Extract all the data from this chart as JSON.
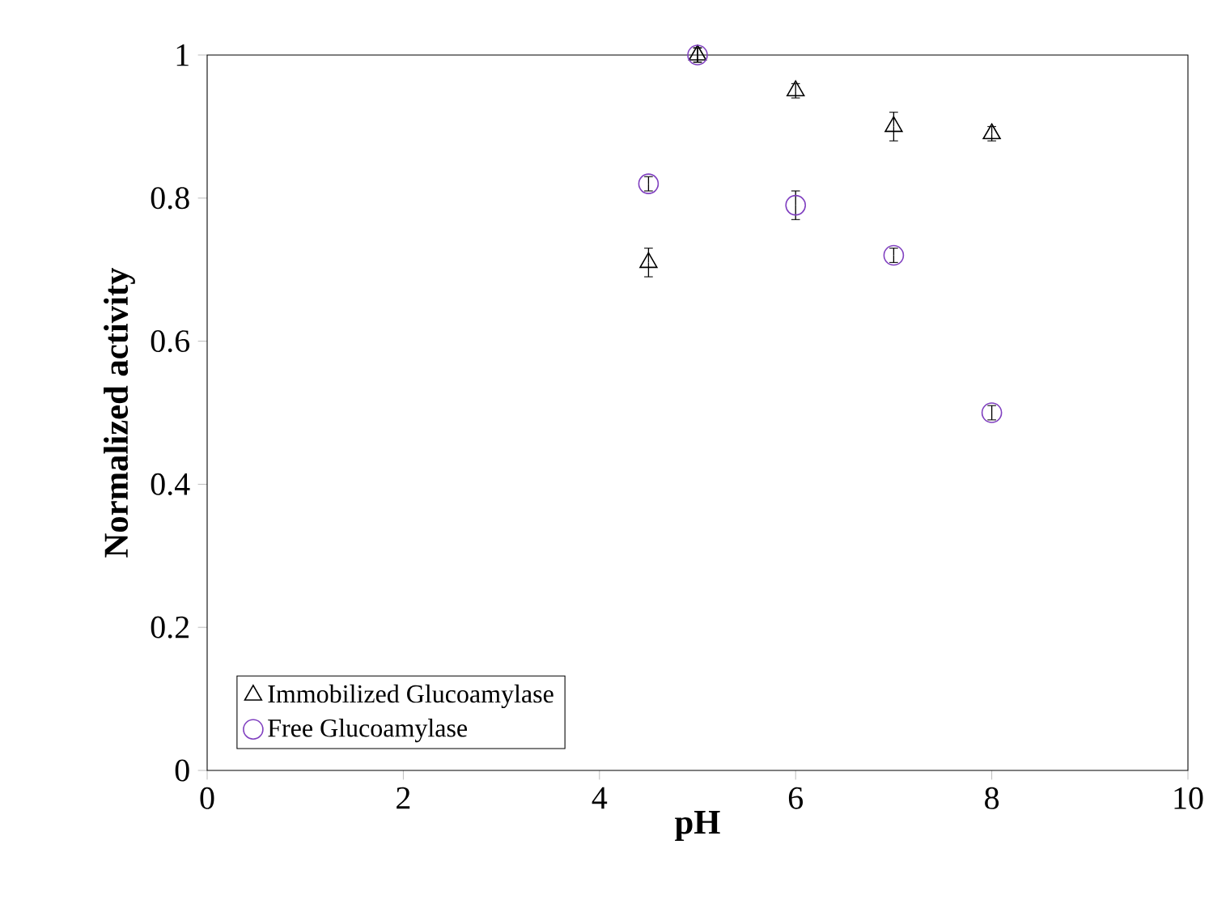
{
  "chart_data": {
    "type": "scatter",
    "xlabel": "pH",
    "ylabel": "Normalized activity",
    "xlim": [
      0,
      10
    ],
    "xticks": [
      0,
      2,
      4,
      6,
      8,
      10
    ],
    "ylim": [
      0,
      1
    ],
    "yticks": [
      0,
      0.2,
      0.4,
      0.6,
      0.8,
      1
    ],
    "legend": "bottom left",
    "grid": false,
    "series": [
      {
        "name": "Immobilized Glucoamylase",
        "color": "#000000",
        "marker": "triangle",
        "x": [
          4.5,
          5,
          6,
          7,
          8
        ],
        "values": [
          0.71,
          1.0,
          0.95,
          0.9,
          0.89
        ],
        "errors": [
          0.02,
          0.01,
          0.01,
          0.02,
          0.01
        ]
      },
      {
        "name": "Free Glucoamylase",
        "color": "#8040c0",
        "marker": "circle",
        "x": [
          4.5,
          5,
          6,
          7,
          8
        ],
        "values": [
          0.82,
          1.0,
          0.79,
          0.72,
          0.5
        ],
        "errors": [
          0.01,
          0.01,
          0.02,
          0.01,
          0.01
        ]
      }
    ]
  }
}
